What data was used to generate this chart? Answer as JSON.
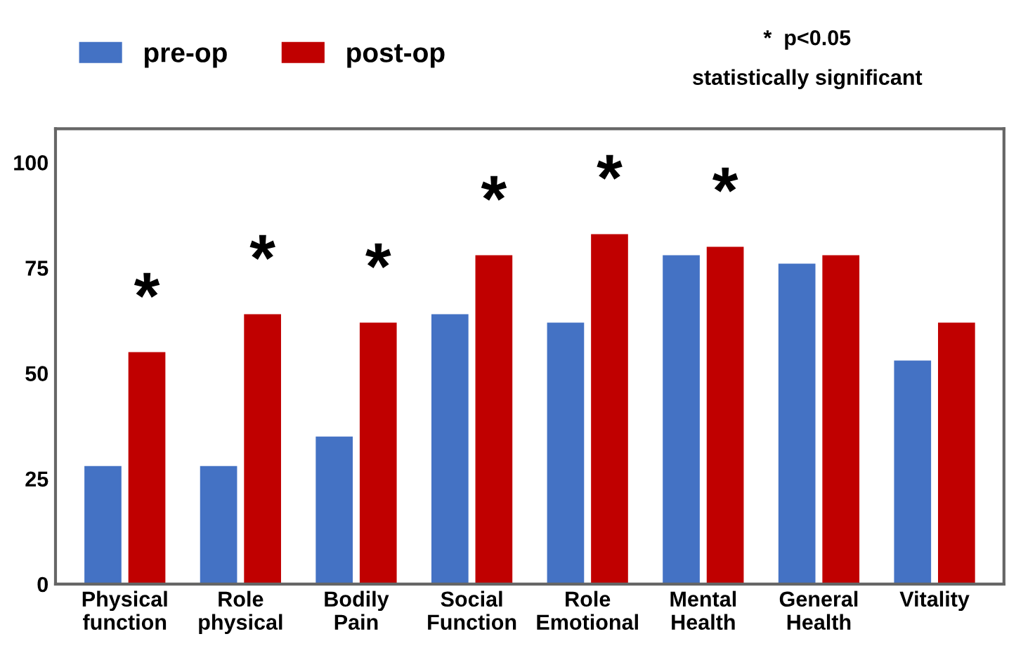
{
  "chart_data": {
    "type": "bar",
    "categories": [
      "Physical\nfunction",
      "Role\nphysical",
      "Bodily\nPain",
      "Social\nFunction",
      "Role\nEmotional",
      "Mental\nHealth",
      "General\nHealth",
      "Vitality"
    ],
    "series": [
      {
        "name": "pre-op",
        "color": "#4472c4",
        "values": [
          28,
          28,
          35,
          64,
          62,
          78,
          76,
          53
        ]
      },
      {
        "name": "post-op",
        "color": "#c00000",
        "values": [
          55,
          64,
          62,
          78,
          83,
          80,
          78,
          62
        ]
      }
    ],
    "ylim": [
      0,
      108
    ],
    "yticks": [
      0,
      25,
      50,
      75,
      100
    ],
    "grid": false,
    "legend": "top left",
    "annotations": [
      {
        "text": "*",
        "x": "Physical\nfunction",
        "y": 55
      },
      {
        "text": "*",
        "x": "Role\nphysical",
        "y": 64
      },
      {
        "text": "*",
        "x": "Bodily\nPain",
        "y": 62
      },
      {
        "text": "*",
        "x": "Social\nFunction",
        "y": 78
      },
      {
        "text": "*",
        "x": "Role\nEmotional",
        "y": 83
      },
      {
        "text": "*",
        "x": "Mental\nHealth",
        "y": 80
      },
      "*  p<0.05",
      "statistically significant"
    ]
  }
}
